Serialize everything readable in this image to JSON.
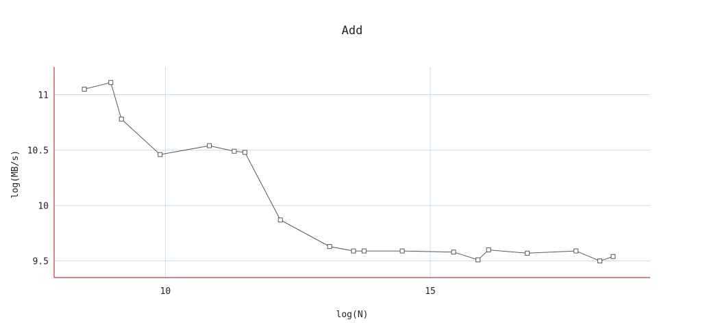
{
  "chart_data": {
    "type": "line",
    "title": "Add",
    "xlabel": "log(N)",
    "ylabel": "log(MB/s)",
    "xlim": [
      7.9,
      19.15
    ],
    "ylim": [
      9.35,
      11.25
    ],
    "xticks": [
      10,
      15
    ],
    "xtick_labels": [
      "10",
      "15"
    ],
    "yticks": [
      9.5,
      10,
      10.5,
      11
    ],
    "ytick_labels": [
      "9.5",
      "10",
      "10.5",
      "11"
    ],
    "grid": true,
    "legend": "none",
    "colors": {
      "line": "#555555",
      "marker": "#555555",
      "grid": "#c9dcee",
      "axis": "#cc5b66"
    },
    "marker": "square",
    "series": [
      {
        "x": [
          8.47,
          8.97,
          9.17,
          9.9,
          10.83,
          11.3,
          11.5,
          12.17,
          13.1,
          13.55,
          13.75,
          14.47,
          15.44,
          15.9,
          16.1,
          16.83,
          17.75,
          18.2,
          18.45
        ],
        "y": [
          11.05,
          11.11,
          10.78,
          10.46,
          10.54,
          10.49,
          10.48,
          9.87,
          9.63,
          9.59,
          9.59,
          9.59,
          9.58,
          9.51,
          9.6,
          9.57,
          9.59,
          9.5,
          9.54
        ]
      }
    ]
  }
}
